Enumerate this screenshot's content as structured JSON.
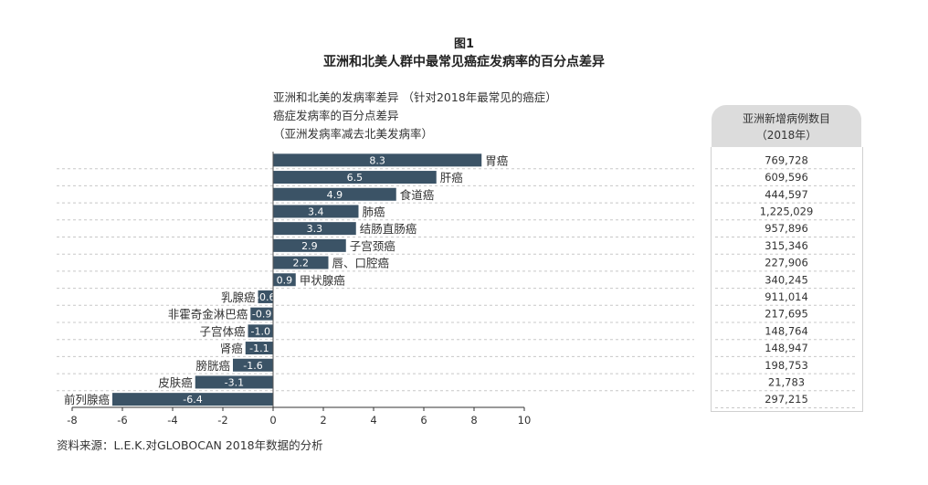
{
  "figure_label": "图1",
  "title": "亚洲和北美人群中最常见癌症发病率的百分点差异",
  "subtitle_lines": [
    "亚洲和北美的发病率差异 （针对2018年最常见的癌症）",
    "癌症发病率的百分点差异",
    "（亚洲发病率减去北美发病率）"
  ],
  "right_column_header": [
    "亚洲新增病例数目",
    "（2018年）"
  ],
  "source": "资料来源：L.E.K.对GLOBOCAN 2018年数据的分析",
  "colors": {
    "bar": "#3b5366",
    "bar_text": "#ffffff",
    "grid": "#c8c8c8",
    "axis": "#333333"
  },
  "chart_data": {
    "type": "bar",
    "orientation": "horizontal",
    "categories": [
      "胃癌",
      "肝癌",
      "食道癌",
      "肺癌",
      "结肠直肠癌",
      "子宫颈癌",
      "唇、口腔癌",
      "甲状腺癌",
      "乳腺癌",
      "非霍奇金淋巴癌",
      "子宫体癌",
      "肾癌",
      "膀胱癌",
      "皮肤癌",
      "前列腺癌"
    ],
    "values": [
      8.3,
      6.5,
      4.9,
      3.4,
      3.3,
      2.9,
      2.2,
      0.9,
      -0.6,
      -0.9,
      -1.0,
      -1.1,
      -1.6,
      -3.1,
      -6.4
    ],
    "value_labels": [
      "8.3",
      "6.5",
      "4.9",
      "3.4",
      "3.3",
      "2.9",
      "2.2",
      "0.9",
      "-0.6",
      "-0.9",
      "-1.0",
      "-1.1",
      "-1.6",
      "-3.1",
      "-6.4"
    ],
    "new_cases_asia_2018": [
      "769,728",
      "609,596",
      "444,597",
      "1,225,029",
      "957,896",
      "315,346",
      "227,906",
      "340,245",
      "911,014",
      "217,695",
      "148,764",
      "148,947",
      "198,753",
      "21,783",
      "297,215"
    ],
    "xlim": [
      -8,
      10
    ],
    "xticks": [
      "-8",
      "-6",
      "-4",
      "-2",
      "0",
      "2",
      "4",
      "6",
      "8",
      "10"
    ],
    "grid": "dashed horizontal row separators"
  }
}
